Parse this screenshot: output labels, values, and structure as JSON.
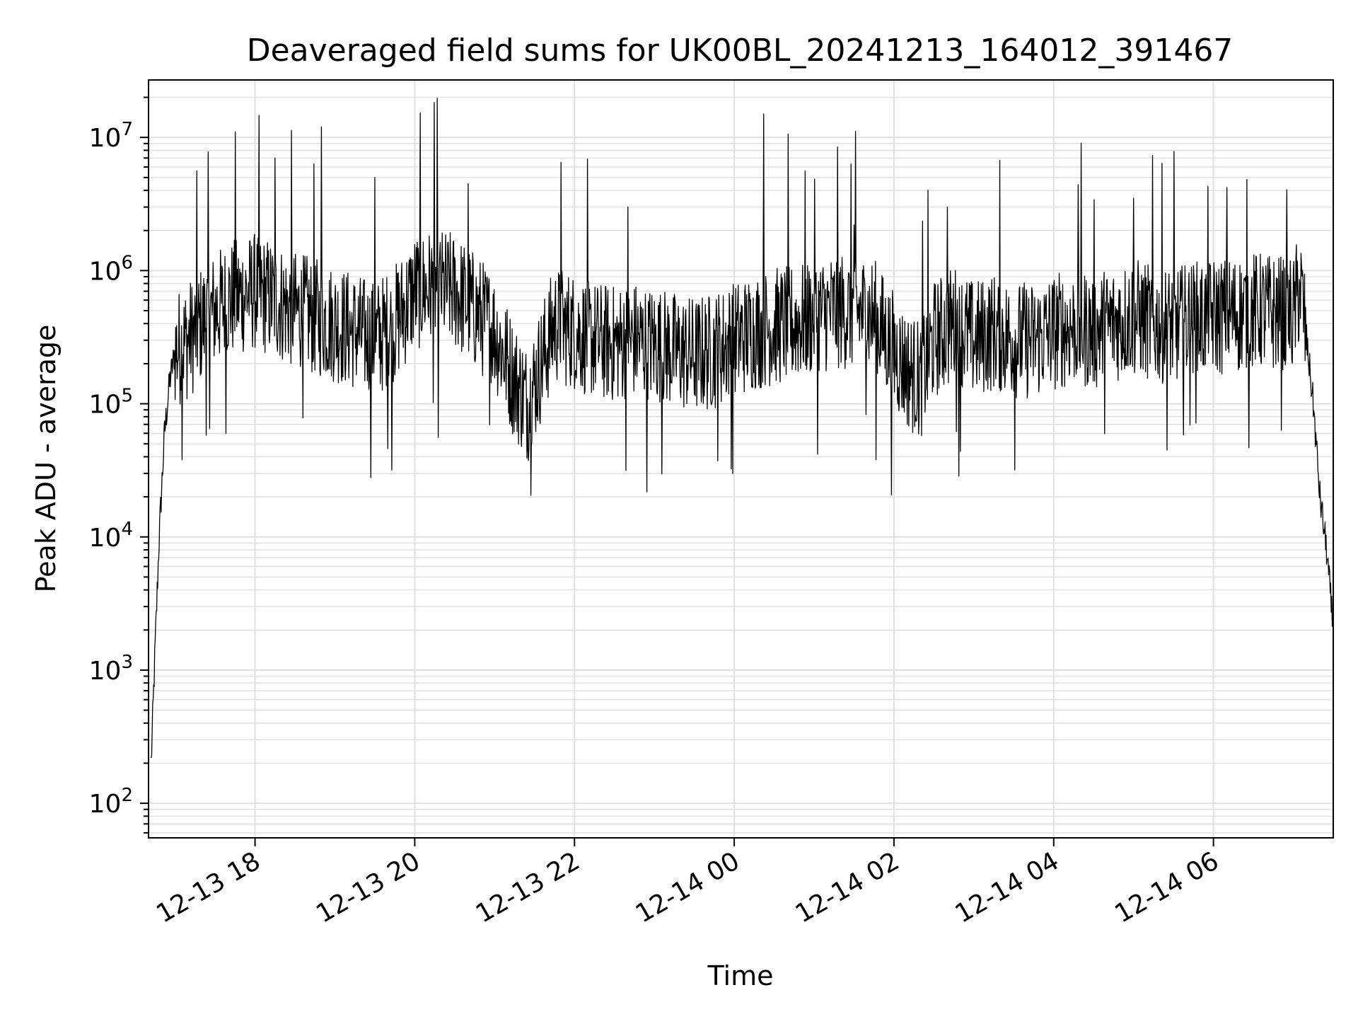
{
  "chart_data": {
    "type": "line",
    "title": "Deaveraged field sums for UK00BL_20241213_164012_391467",
    "xlabel": "Time",
    "ylabel": "Peak ADU - average",
    "yscale": "log",
    "ylim": [
      55,
      27000000
    ],
    "xlim": [
      "2024-12-13 16:40",
      "2024-12-14 07:30"
    ],
    "grid": true,
    "line_color": "#000000",
    "grid_color": "#e0e0e0",
    "x_ticks": [
      {
        "value": "2024-12-13 18:00",
        "label": "12-13 18"
      },
      {
        "value": "2024-12-13 20:00",
        "label": "12-13 20"
      },
      {
        "value": "2024-12-13 22:00",
        "label": "12-13 22"
      },
      {
        "value": "2024-12-14 00:00",
        "label": "12-14 00"
      },
      {
        "value": "2024-12-14 02:00",
        "label": "12-14 02"
      },
      {
        "value": "2024-12-14 04:00",
        "label": "12-14 04"
      },
      {
        "value": "2024-12-14 06:00",
        "label": "12-14 06"
      }
    ],
    "y_ticks": [
      {
        "value": 100,
        "base": "10",
        "exp": "2"
      },
      {
        "value": 1000,
        "base": "10",
        "exp": "3"
      },
      {
        "value": 10000,
        "base": "10",
        "exp": "4"
      },
      {
        "value": 100000,
        "base": "10",
        "exp": "5"
      },
      {
        "value": 1000000,
        "base": "10",
        "exp": "6"
      },
      {
        "value": 10000000,
        "base": "10",
        "exp": "7"
      }
    ],
    "series": [
      {
        "x": [
          "2024-12-13 16:42",
          "2024-12-13 16:45",
          "2024-12-13 16:48",
          "2024-12-13 16:52",
          "2024-12-13 16:56",
          "2024-12-13 17:00",
          "2024-12-13 17:10",
          "2024-12-13 17:20",
          "2024-12-13 17:30",
          "2024-12-13 17:40",
          "2024-12-13 17:50",
          "2024-12-13 18:00",
          "2024-12-13 18:15",
          "2024-12-13 18:30",
          "2024-12-13 18:45",
          "2024-12-13 19:00",
          "2024-12-13 19:15",
          "2024-12-13 19:30",
          "2024-12-13 19:45",
          "2024-12-13 20:00",
          "2024-12-13 20:15",
          "2024-12-13 20:30",
          "2024-12-13 20:45",
          "2024-12-13 21:00",
          "2024-12-13 21:15",
          "2024-12-13 21:25",
          "2024-12-13 21:35",
          "2024-12-13 21:45",
          "2024-12-13 22:00",
          "2024-12-13 22:15",
          "2024-12-13 22:30",
          "2024-12-13 22:45",
          "2024-12-13 23:00",
          "2024-12-13 23:15",
          "2024-12-13 23:30",
          "2024-12-13 23:45",
          "2024-12-14 00:00",
          "2024-12-14 00:15",
          "2024-12-14 00:30",
          "2024-12-14 00:45",
          "2024-12-14 01:00",
          "2024-12-14 01:15",
          "2024-12-14 01:30",
          "2024-12-14 01:45",
          "2024-12-14 02:00",
          "2024-12-14 02:10",
          "2024-12-14 02:20",
          "2024-12-14 02:30",
          "2024-12-14 02:45",
          "2024-12-14 03:00",
          "2024-12-14 03:15",
          "2024-12-14 03:30",
          "2024-12-14 03:45",
          "2024-12-14 04:00",
          "2024-12-14 04:15",
          "2024-12-14 04:30",
          "2024-12-14 04:45",
          "2024-12-14 05:00",
          "2024-12-14 05:15",
          "2024-12-14 05:30",
          "2024-12-14 05:45",
          "2024-12-14 06:00",
          "2024-12-14 06:15",
          "2024-12-14 06:30",
          "2024-12-14 06:45",
          "2024-12-14 07:00",
          "2024-12-14 07:05",
          "2024-12-14 07:10",
          "2024-12-14 07:15",
          "2024-12-14 07:20",
          "2024-12-14 07:25",
          "2024-12-14 07:30"
        ],
        "y": [
          200,
          1500,
          10000,
          60000,
          150000,
          250000,
          300000,
          400000,
          500000,
          600000,
          650000,
          700000,
          600000,
          500000,
          450000,
          400000,
          350000,
          300000,
          400000,
          700000,
          750000,
          700000,
          500000,
          350000,
          150000,
          100000,
          200000,
          400000,
          350000,
          300000,
          280000,
          300000,
          280000,
          250000,
          230000,
          250000,
          300000,
          350000,
          380000,
          400000,
          450000,
          500000,
          500000,
          450000,
          250000,
          180000,
          150000,
          300000,
          400000,
          300000,
          350000,
          300000,
          300000,
          350000,
          380000,
          350000,
          400000,
          450000,
          400000,
          380000,
          420000,
          450000,
          470000,
          500000,
          480000,
          450000,
          800000,
          300000,
          100000,
          20000,
          8000,
          2000
        ],
        "spikes": [
          {
            "x": "2024-12-13 17:45",
            "y": 11000000
          },
          {
            "x": "2024-12-13 18:15",
            "y": 7000000
          },
          {
            "x": "2024-12-13 18:50",
            "y": 12000000
          },
          {
            "x": "2024-12-13 19:30",
            "y": 5000000
          },
          {
            "x": "2024-12-13 20:40",
            "y": 4500000
          },
          {
            "x": "2024-12-13 21:50",
            "y": 6500000
          },
          {
            "x": "2024-12-13 22:40",
            "y": 3000000
          },
          {
            "x": "2024-12-14 00:22",
            "y": 15000000
          },
          {
            "x": "2024-12-14 01:30",
            "y": 2200000
          },
          {
            "x": "2024-12-14 02:40",
            "y": 3000000
          },
          {
            "x": "2024-12-14 05:00",
            "y": 3500000
          },
          {
            "x": "2024-12-14 06:10",
            "y": 4200000
          }
        ]
      }
    ]
  }
}
